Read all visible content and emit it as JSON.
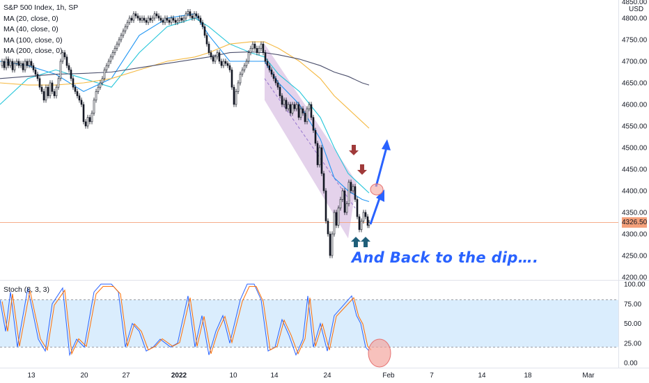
{
  "chart_data": [
    {
      "type": "line",
      "title": "S&P 500 Index, 1h, SP",
      "currency": "USD",
      "ylim": [
        4200,
        4850
      ],
      "y_ticks": [
        4200,
        4250,
        4300,
        4350,
        4400,
        4450,
        4500,
        4550,
        4600,
        4650,
        4700,
        4750,
        4800
      ],
      "top_tick": "4850.00",
      "x_ticks": [
        "13",
        "20",
        "27",
        "2022",
        "10",
        "14",
        "24",
        "Feb",
        "7",
        "14",
        "18",
        "Mar"
      ],
      "last_price": "4326.50",
      "legend": [
        "MA (20, close, 0)",
        "MA (40, close, 0)",
        "MA (100, close, 0)",
        "MA (200, close, 0)"
      ],
      "series": [
        {
          "name": "MA (20, close, 0)",
          "color": "#2196f3"
        },
        {
          "name": "MA (40, close, 0)",
          "color": "#26c6da"
        },
        {
          "name": "MA (100, close, 0)",
          "color": "#f5b942"
        },
        {
          "name": "MA (200, close, 0)",
          "color": "#4a4e6b"
        }
      ],
      "close_path": [
        [
          0,
          4690
        ],
        [
          3,
          4700
        ],
        [
          6,
          4685
        ],
        [
          9,
          4705
        ],
        [
          12,
          4690
        ],
        [
          15,
          4700
        ],
        [
          18,
          4680
        ],
        [
          21,
          4695
        ],
        [
          24,
          4700
        ],
        [
          27,
          4690
        ],
        [
          30,
          4695
        ],
        [
          33,
          4680
        ],
        [
          36,
          4700
        ],
        [
          39,
          4690
        ],
        [
          42,
          4700
        ],
        [
          45,
          4690
        ],
        [
          48,
          4680
        ],
        [
          51,
          4670
        ],
        [
          54,
          4660
        ],
        [
          57,
          4640
        ],
        [
          60,
          4630
        ],
        [
          63,
          4610
        ],
        [
          66,
          4640
        ],
        [
          69,
          4620
        ],
        [
          72,
          4650
        ],
        [
          75,
          4630
        ],
        [
          78,
          4620
        ],
        [
          81,
          4640
        ],
        [
          84,
          4660
        ],
        [
          87,
          4700
        ],
        [
          90,
          4720
        ],
        [
          93,
          4710
        ],
        [
          96,
          4690
        ],
        [
          99,
          4680
        ],
        [
          102,
          4660
        ],
        [
          105,
          4640
        ],
        [
          108,
          4630
        ],
        [
          111,
          4620
        ],
        [
          114,
          4610
        ],
        [
          117,
          4600
        ],
        [
          120,
          4560
        ],
        [
          123,
          4550
        ],
        [
          126,
          4570
        ],
        [
          129,
          4560
        ],
        [
          132,
          4580
        ],
        [
          135,
          4610
        ],
        [
          138,
          4630
        ],
        [
          141,
          4640
        ],
        [
          144,
          4650
        ],
        [
          147,
          4660
        ],
        [
          150,
          4680
        ],
        [
          153,
          4690
        ],
        [
          156,
          4700
        ],
        [
          159,
          4710
        ],
        [
          162,
          4720
        ],
        [
          165,
          4730
        ],
        [
          168,
          4740
        ],
        [
          171,
          4750
        ],
        [
          174,
          4760
        ],
        [
          177,
          4770
        ],
        [
          180,
          4780
        ],
        [
          183,
          4790
        ],
        [
          186,
          4800
        ],
        [
          189,
          4795
        ],
        [
          192,
          4810
        ],
        [
          195,
          4805
        ],
        [
          198,
          4800
        ],
        [
          201,
          4795
        ],
        [
          204,
          4800
        ],
        [
          207,
          4795
        ],
        [
          210,
          4790
        ],
        [
          213,
          4800
        ],
        [
          216,
          4795
        ],
        [
          219,
          4800
        ],
        [
          222,
          4810
        ],
        [
          225,
          4805
        ],
        [
          228,
          4800
        ],
        [
          231,
          4795
        ],
        [
          234,
          4790
        ],
        [
          237,
          4800
        ],
        [
          240,
          4795
        ],
        [
          243,
          4790
        ],
        [
          246,
          4800
        ],
        [
          249,
          4795
        ],
        [
          252,
          4790
        ],
        [
          255,
          4795
        ],
        [
          258,
          4800
        ],
        [
          261,
          4795
        ],
        [
          264,
          4800
        ],
        [
          267,
          4810
        ],
        [
          270,
          4815
        ],
        [
          273,
          4805
        ],
        [
          276,
          4800
        ],
        [
          279,
          4810
        ],
        [
          282,
          4805
        ],
        [
          285,
          4800
        ],
        [
          288,
          4790
        ],
        [
          291,
          4780
        ],
        [
          294,
          4760
        ],
        [
          297,
          4740
        ],
        [
          300,
          4720
        ],
        [
          303,
          4710
        ],
        [
          306,
          4700
        ],
        [
          309,
          4710
        ],
        [
          312,
          4720
        ],
        [
          315,
          4700
        ],
        [
          318,
          4690
        ],
        [
          321,
          4700
        ],
        [
          324,
          4695
        ],
        [
          327,
          4690
        ],
        [
          330,
          4680
        ],
        [
          333,
          4640
        ],
        [
          336,
          4600
        ],
        [
          339,
          4630
        ],
        [
          342,
          4650
        ],
        [
          345,
          4670
        ],
        [
          348,
          4680
        ],
        [
          351,
          4690
        ],
        [
          354,
          4700
        ],
        [
          357,
          4720
        ],
        [
          360,
          4730
        ],
        [
          363,
          4740
        ],
        [
          366,
          4730
        ],
        [
          369,
          4720
        ],
        [
          372,
          4730
        ],
        [
          375,
          4740
        ],
        [
          378,
          4720
        ],
        [
          381,
          4700
        ],
        [
          384,
          4690
        ],
        [
          387,
          4680
        ],
        [
          390,
          4670
        ],
        [
          393,
          4660
        ],
        [
          396,
          4650
        ],
        [
          399,
          4640
        ],
        [
          402,
          4620
        ],
        [
          405,
          4600
        ],
        [
          408,
          4610
        ],
        [
          411,
          4590
        ],
        [
          414,
          4600
        ],
        [
          417,
          4580
        ],
        [
          420,
          4600
        ],
        [
          423,
          4590
        ],
        [
          426,
          4600
        ],
        [
          429,
          4570
        ],
        [
          432,
          4590
        ],
        [
          435,
          4580
        ],
        [
          438,
          4560
        ],
        [
          441,
          4590
        ],
        [
          444,
          4600
        ],
        [
          447,
          4570
        ],
        [
          450,
          4540
        ],
        [
          453,
          4510
        ],
        [
          456,
          4460
        ],
        [
          459,
          4500
        ],
        [
          462,
          4440
        ],
        [
          465,
          4400
        ],
        [
          468,
          4330
        ],
        [
          471,
          4300
        ],
        [
          474,
          4250
        ],
        [
          477,
          4300
        ],
        [
          480,
          4350
        ],
        [
          483,
          4320
        ],
        [
          486,
          4360
        ],
        [
          489,
          4380
        ],
        [
          492,
          4400
        ],
        [
          495,
          4350
        ],
        [
          498,
          4370
        ],
        [
          501,
          4420
        ],
        [
          504,
          4400
        ],
        [
          507,
          4410
        ],
        [
          510,
          4380
        ],
        [
          513,
          4340
        ],
        [
          516,
          4310
        ],
        [
          519,
          4330
        ],
        [
          522,
          4350
        ],
        [
          525,
          4340
        ],
        [
          528,
          4320
        ],
        [
          530,
          4326.5
        ]
      ],
      "ma_paths": [
        [
          [
            0,
            4700
          ],
          [
            40,
            4690
          ],
          [
            80,
            4670
          ],
          [
            120,
            4630
          ],
          [
            160,
            4660
          ],
          [
            200,
            4760
          ],
          [
            240,
            4800
          ],
          [
            280,
            4810
          ],
          [
            300,
            4760
          ],
          [
            330,
            4700
          ],
          [
            360,
            4700
          ],
          [
            380,
            4700
          ],
          [
            400,
            4650
          ],
          [
            430,
            4600
          ],
          [
            460,
            4520
          ],
          [
            480,
            4430
          ],
          [
            500,
            4400
          ],
          [
            520,
            4380
          ],
          [
            530,
            4375
          ]
        ],
        [
          [
            0,
            4600
          ],
          [
            40,
            4660
          ],
          [
            80,
            4680
          ],
          [
            120,
            4660
          ],
          [
            160,
            4640
          ],
          [
            200,
            4720
          ],
          [
            240,
            4780
          ],
          [
            280,
            4800
          ],
          [
            300,
            4780
          ],
          [
            330,
            4740
          ],
          [
            360,
            4720
          ],
          [
            380,
            4710
          ],
          [
            400,
            4670
          ],
          [
            430,
            4630
          ],
          [
            460,
            4570
          ],
          [
            480,
            4500
          ],
          [
            500,
            4440
          ],
          [
            520,
            4410
          ],
          [
            530,
            4395
          ]
        ],
        [
          [
            0,
            4650
          ],
          [
            40,
            4645
          ],
          [
            80,
            4645
          ],
          [
            120,
            4650
          ],
          [
            160,
            4660
          ],
          [
            200,
            4680
          ],
          [
            240,
            4700
          ],
          [
            280,
            4710
          ],
          [
            300,
            4720
          ],
          [
            330,
            4740
          ],
          [
            360,
            4745
          ],
          [
            380,
            4745
          ],
          [
            400,
            4730
          ],
          [
            430,
            4700
          ],
          [
            460,
            4660
          ],
          [
            480,
            4620
          ],
          [
            500,
            4590
          ],
          [
            520,
            4560
          ],
          [
            530,
            4545
          ]
        ],
        [
          [
            0,
            4660
          ],
          [
            40,
            4665
          ],
          [
            80,
            4670
          ],
          [
            120,
            4672
          ],
          [
            160,
            4675
          ],
          [
            200,
            4685
          ],
          [
            240,
            4695
          ],
          [
            280,
            4705
          ],
          [
            300,
            4710
          ],
          [
            330,
            4720
          ],
          [
            360,
            4722
          ],
          [
            380,
            4720
          ],
          [
            400,
            4715
          ],
          [
            430,
            4705
          ],
          [
            460,
            4690
          ],
          [
            480,
            4675
          ],
          [
            500,
            4665
          ],
          [
            520,
            4650
          ],
          [
            530,
            4645
          ]
        ]
      ]
    },
    {
      "type": "line",
      "title": "Stoch (8, 3, 3)",
      "ylim": [
        0,
        100
      ],
      "y_ticks": [
        "100.00",
        "75.00",
        "50.00",
        "25.00",
        "0.00"
      ],
      "bands": [
        20,
        80
      ],
      "series": [
        {
          "name": "K",
          "color": "#2962ff"
        },
        {
          "name": "D",
          "color": "#ff6d00"
        }
      ]
    }
  ],
  "annotation": "And Back to the dip….",
  "colors": {
    "candle": "#131722",
    "channel": "#c39bd3",
    "arrow_down": "#a03a3a",
    "arrow_up": "#1f5f7a",
    "arrow_blue": "#2962ff",
    "circle": "#f3a6a0",
    "band": "#bbdefb",
    "price_line": "#f4a07a"
  }
}
